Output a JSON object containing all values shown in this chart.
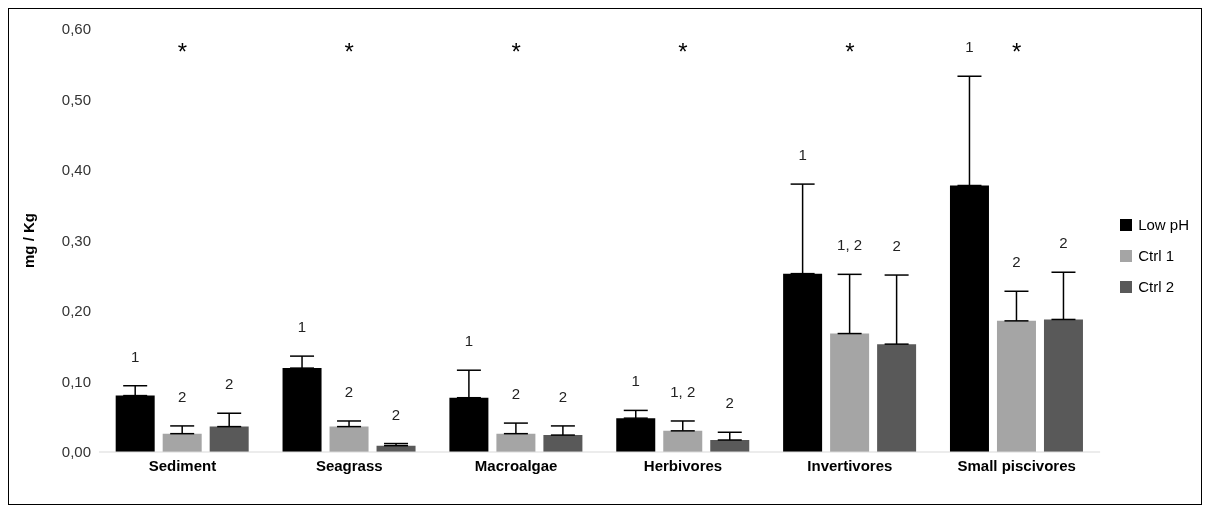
{
  "chart_data": {
    "type": "bar",
    "ylabel": "mg / Kg",
    "categories": [
      "Sediment",
      "Seagrass",
      "Macroalgae",
      "Herbivores",
      "Invertivores",
      "Small piscivores"
    ],
    "series": [
      {
        "name": "Low pH",
        "color": "#000000",
        "values": [
          0.08,
          0.119,
          0.077,
          0.048,
          0.253,
          0.378
        ],
        "errors": [
          [
            0.08,
            0.094
          ],
          [
            0.119,
            0.136
          ],
          [
            0.077,
            0.116
          ],
          [
            0.048,
            0.059
          ],
          [
            0.253,
            0.38
          ],
          [
            0.378,
            0.533
          ]
        ]
      },
      {
        "name": "Ctrl 1",
        "color": "#a5a5a5",
        "values": [
          0.026,
          0.036,
          0.026,
          0.03,
          0.168,
          0.186
        ],
        "errors": [
          [
            0.026,
            0.037
          ],
          [
            0.036,
            0.044
          ],
          [
            0.026,
            0.041
          ],
          [
            0.03,
            0.044
          ],
          [
            0.168,
            0.252
          ],
          [
            0.186,
            0.228
          ]
        ]
      },
      {
        "name": "Ctrl 2",
        "color": "#595959",
        "values": [
          0.036,
          0.009,
          0.024,
          0.017,
          0.153,
          0.188
        ],
        "errors": [
          [
            0.036,
            0.055
          ],
          [
            0.009,
            0.012
          ],
          [
            0.024,
            0.037
          ],
          [
            0.017,
            0.028
          ],
          [
            0.153,
            0.251
          ],
          [
            0.188,
            0.255
          ]
        ]
      }
    ],
    "ylim": [
      0,
      0.6
    ],
    "yticks": [
      {
        "value": 0,
        "label": "0,00"
      },
      {
        "value": 0.1,
        "label": "0,10"
      },
      {
        "value": 0.2,
        "label": "0,20"
      },
      {
        "value": 0.3,
        "label": "0,30"
      },
      {
        "value": 0.4,
        "label": "0,40"
      },
      {
        "value": 0.5,
        "label": "0,50"
      },
      {
        "value": 0.6,
        "label": "0,60"
      }
    ],
    "annotations": [
      "*",
      "*",
      "*",
      "*",
      "*",
      "*",
      "1",
      "2",
      "2",
      "1",
      "2",
      "2",
      "1",
      "2",
      "2",
      "1",
      "1, 2",
      "2",
      "1",
      "1, 2",
      "2",
      "1",
      "2",
      "2"
    ],
    "grid": false,
    "legend": "right"
  }
}
